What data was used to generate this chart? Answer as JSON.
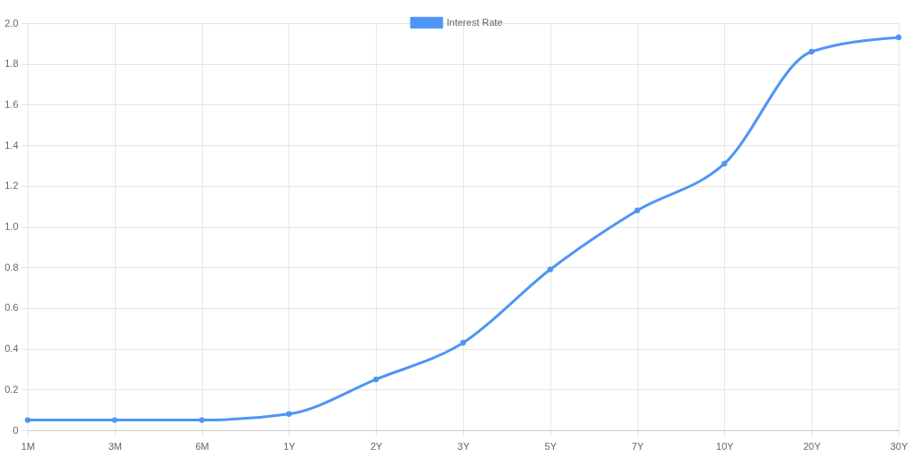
{
  "chart_data": {
    "type": "line",
    "categories": [
      "1M",
      "3M",
      "6M",
      "1Y",
      "2Y",
      "3Y",
      "5Y",
      "7Y",
      "10Y",
      "20Y",
      "30Y"
    ],
    "series": [
      {
        "name": "Interest Rate",
        "color": "#4f95f5",
        "values": [
          0.05,
          0.05,
          0.05,
          0.08,
          0.25,
          0.43,
          0.79,
          1.08,
          1.31,
          1.86,
          1.93
        ]
      }
    ],
    "ylim": [
      0,
      2
    ],
    "yticks": [
      0,
      0.2,
      0.4,
      0.6,
      0.8,
      {
        "value": 1,
        "label": "1.0"
      },
      1.2,
      1.4,
      1.6,
      1.8,
      {
        "value": 2,
        "label": "2.0"
      }
    ],
    "grid": true,
    "legend": "top",
    "marker": "circle",
    "line_style": "solid"
  }
}
